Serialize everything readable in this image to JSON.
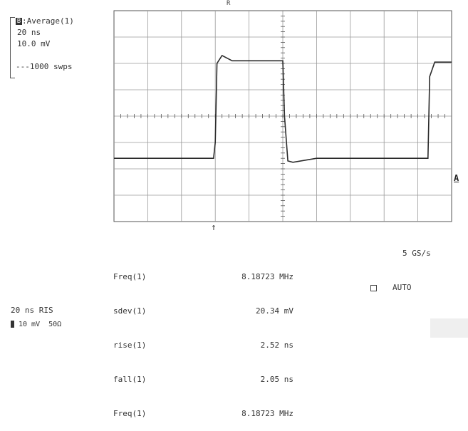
{
  "top_mark": "R",
  "trace_info": {
    "channel_badge": "B",
    "function_label": ":Average(1)",
    "time_per_div": "20 ns",
    "volts_per_div": "10.0 mV",
    "sweeps": "---1000 swps"
  },
  "side_marker": "A",
  "trigger_marker": "↑",
  "measurements": [
    {
      "label": "Freq(1)",
      "value": "8.18723 MHz"
    },
    {
      "label": "sdev(1)",
      "value": "20.34 mV"
    },
    {
      "label": "rise(1)",
      "value": "2.52 ns"
    },
    {
      "label": "fall(1)",
      "value": "2.05 ns"
    },
    {
      "label": "Freq(1)",
      "value": "8.18723 MHz"
    }
  ],
  "sample_rate": "5 GS/s",
  "trigger_mode": "AUTO",
  "timebase": "20 ns RIS",
  "channel_setting": "10 mV  50Ω",
  "colors": {
    "trace": "#2b2b2b",
    "grid": "#9a9a9a"
  },
  "chart_data": {
    "type": "line",
    "grid": {
      "x_divisions": 10,
      "y_divisions": 8
    },
    "series": [
      {
        "x": [
          0.0,
          2.95,
          3.0,
          3.05,
          3.2,
          3.5,
          5.0,
          5.05,
          5.15,
          5.3,
          6.0,
          9.3,
          9.35,
          9.5,
          10.0
        ],
        "y": [
          -1.6,
          -1.6,
          -1.0,
          2.0,
          2.3,
          2.1,
          2.1,
          0.0,
          -1.7,
          -1.75,
          -1.6,
          -1.6,
          1.5,
          2.05,
          2.05
        ]
      }
    ]
  }
}
